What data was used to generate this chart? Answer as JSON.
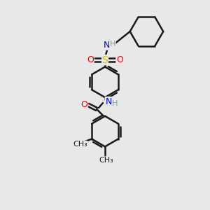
{
  "background_color": "#e8e8e8",
  "bond_color": "#1a1a1a",
  "bond_width": 1.8,
  "atom_colors": {
    "C": "#1a1a1a",
    "H": "#7f9f9f",
    "N": "#0000ee",
    "O": "#ee0000",
    "S": "#cccc00"
  },
  "figsize": [
    3.0,
    3.0
  ],
  "dpi": 100
}
